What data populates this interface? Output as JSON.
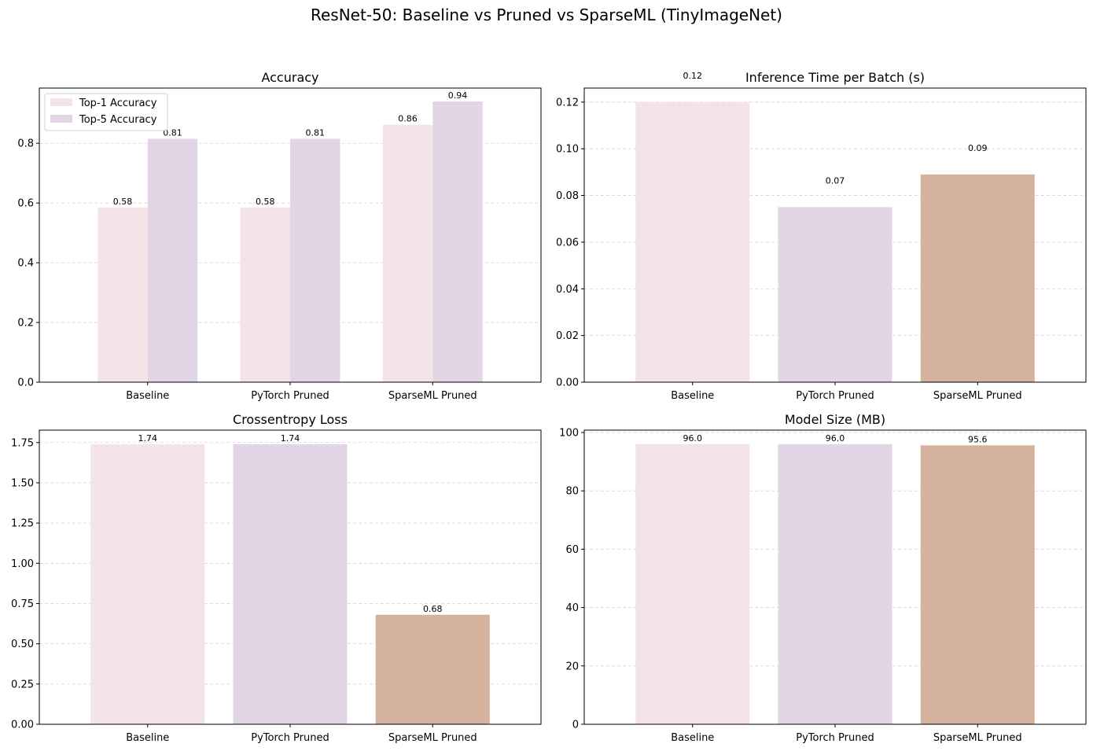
{
  "figure_title": "ResNet-50: Baseline vs Pruned vs SparseML (TinyImageNet)",
  "colors": {
    "top1": "#f4e4e7",
    "top5": "#e1d5e6",
    "baseline": "#f4e4e7",
    "pytorch": "#e1d5e6",
    "sparseml": "#d5b29e"
  },
  "chart_data": [
    {
      "type": "bar",
      "title": "Accuracy",
      "categories": [
        "Baseline",
        "PyTorch Pruned",
        "SparseML Pruned"
      ],
      "series": [
        {
          "name": "Top-1 Accuracy",
          "values": [
            0.585,
            0.585,
            0.862
          ],
          "labels": [
            "0.58",
            "0.58",
            "0.86"
          ]
        },
        {
          "name": "Top-5 Accuracy",
          "values": [
            0.815,
            0.815,
            0.94
          ],
          "labels": [
            "0.81",
            "0.81",
            "0.94"
          ]
        }
      ],
      "ylim": [
        0,
        0.985
      ],
      "yticks": [
        "0.0",
        "0.2",
        "0.4",
        "0.6",
        "0.8"
      ],
      "grid": true,
      "legend": "top-left"
    },
    {
      "type": "bar",
      "title": "Inference Time per Batch (s)",
      "categories": [
        "Baseline",
        "PyTorch Pruned",
        "SparseML Pruned"
      ],
      "values": [
        0.12,
        0.075,
        0.089
      ],
      "labels": [
        "0.12",
        "0.07",
        "0.09"
      ],
      "ylim": [
        0,
        0.126
      ],
      "yticks": [
        "0.00",
        "0.02",
        "0.04",
        "0.06",
        "0.08",
        "0.10",
        "0.12"
      ],
      "grid": true
    },
    {
      "type": "bar",
      "title": "Crossentropy Loss",
      "categories": [
        "Baseline",
        "PyTorch Pruned",
        "SparseML Pruned"
      ],
      "values": [
        1.74,
        1.74,
        0.68
      ],
      "labels": [
        "1.74",
        "1.74",
        "0.68"
      ],
      "ylim": [
        0,
        1.827
      ],
      "yticks": [
        "0.00",
        "0.25",
        "0.50",
        "0.75",
        "1.00",
        "1.25",
        "1.50",
        "1.75"
      ],
      "grid": true
    },
    {
      "type": "bar",
      "title": "Model Size (MB)",
      "categories": [
        "Baseline",
        "PyTorch Pruned",
        "SparseML Pruned"
      ],
      "values": [
        96.0,
        96.0,
        95.6
      ],
      "labels": [
        "96.0",
        "96.0",
        "95.6"
      ],
      "ylim": [
        0,
        100.8
      ],
      "yticks": [
        "0",
        "20",
        "40",
        "60",
        "80",
        "100"
      ],
      "grid": true
    }
  ]
}
